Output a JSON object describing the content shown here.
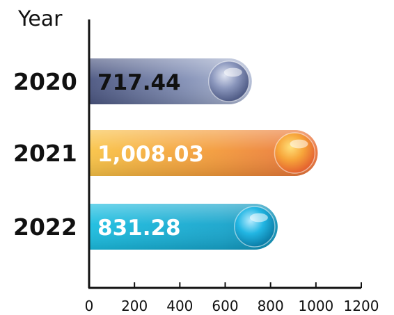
{
  "chart_data": {
    "type": "bar",
    "orientation": "horizontal",
    "ylabel": "Year",
    "xlabel": "",
    "title": "",
    "categories": [
      "2020",
      "2021",
      "2022"
    ],
    "values": [
      717.44,
      1008.03,
      831.28
    ],
    "value_labels": [
      "717.44",
      "1,008.03",
      "831.28"
    ],
    "xlim": [
      0,
      1200
    ],
    "xticks": [
      "0",
      "200",
      "400",
      "600",
      "800",
      "1000",
      "1200"
    ],
    "grid": false,
    "legend": "none",
    "colors": [
      "#5b6790",
      "#f0913a",
      "#16a9d0"
    ],
    "value_label_colors": [
      "#111111",
      "#ffffff",
      "#ffffff"
    ]
  }
}
